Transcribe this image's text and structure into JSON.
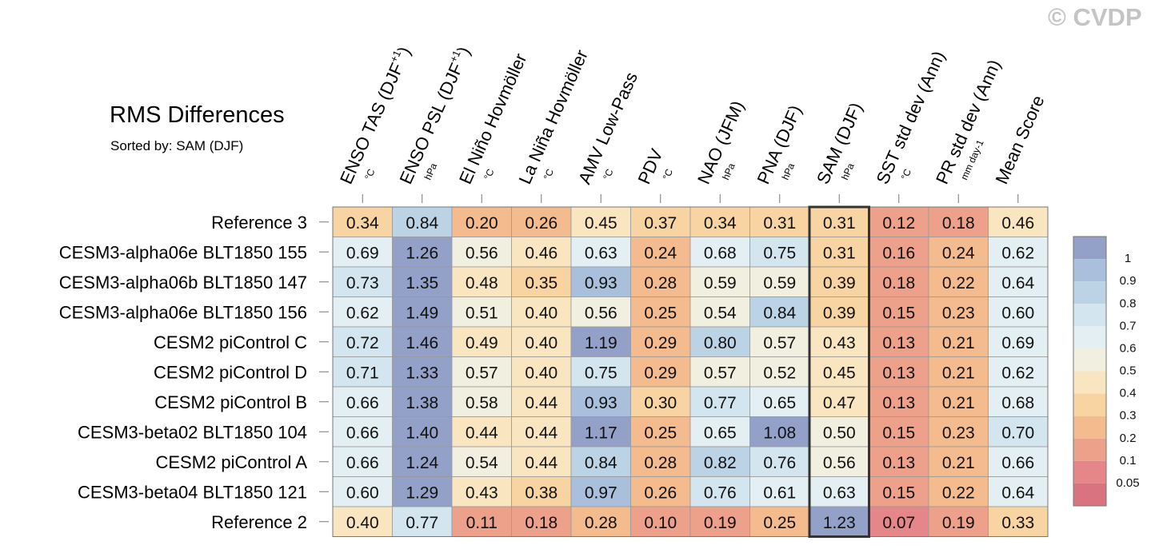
{
  "copyright": "© CVDP",
  "chart_data": {
    "type": "heatmap",
    "title": "RMS Differences",
    "subtitle": "Sorted by: SAM (DJF)",
    "highlight_column": "SAM (DJF)",
    "columns": [
      {
        "name": "ENSO TAS (DJF+1)",
        "base": "ENSO TAS (DJF",
        "sup": "+1",
        "close": ")",
        "unit": "°C"
      },
      {
        "name": "ENSO PSL (DJF+1)",
        "base": "ENSO PSL (DJF",
        "sup": "+1",
        "close": ")",
        "unit": "hPa"
      },
      {
        "name": "El Niño Hovmöller",
        "base": "El Niño Hovmöller",
        "sup": "",
        "close": "",
        "unit": "°C"
      },
      {
        "name": "La Niña Hovmöller",
        "base": "La Niña Hovmöller",
        "sup": "",
        "close": "",
        "unit": "°C"
      },
      {
        "name": "AMV Low-Pass",
        "base": "AMV Low-Pass",
        "sup": "",
        "close": "",
        "unit": "°C"
      },
      {
        "name": "PDV",
        "base": "PDV",
        "sup": "",
        "close": "",
        "unit": "°C"
      },
      {
        "name": "NAO (JFM)",
        "base": "NAO (JFM)",
        "sup": "",
        "close": "",
        "unit": "hPa"
      },
      {
        "name": "PNA (DJF)",
        "base": "PNA (DJF)",
        "sup": "",
        "close": "",
        "unit": "hPa"
      },
      {
        "name": "SAM (DJF)",
        "base": "SAM (DJF)",
        "sup": "",
        "close": "",
        "unit": "hPa"
      },
      {
        "name": "SST std dev (Ann)",
        "base": "SST std dev (Ann)",
        "sup": "",
        "close": "",
        "unit": "°C"
      },
      {
        "name": "PR std dev (Ann)",
        "base": "PR std dev (Ann)",
        "sup": "",
        "close": "",
        "unit": "mm day-1"
      },
      {
        "name": "Mean Score",
        "base": "Mean Score",
        "sup": "",
        "close": "",
        "unit": ""
      }
    ],
    "rows": [
      {
        "label": "Reference 3",
        "values": [
          "0.34",
          "0.84",
          "0.20",
          "0.26",
          "0.45",
          "0.37",
          "0.34",
          "0.31",
          "0.31",
          "0.12",
          "0.18",
          "0.46"
        ]
      },
      {
        "label": "CESM3-alpha06e BLT1850 155",
        "values": [
          "0.69",
          "1.26",
          "0.56",
          "0.46",
          "0.63",
          "0.24",
          "0.68",
          "0.75",
          "0.31",
          "0.16",
          "0.24",
          "0.62"
        ]
      },
      {
        "label": "CESM3-alpha06b BLT1850 147",
        "values": [
          "0.73",
          "1.35",
          "0.48",
          "0.35",
          "0.93",
          "0.28",
          "0.59",
          "0.59",
          "0.39",
          "0.18",
          "0.22",
          "0.64"
        ]
      },
      {
        "label": "CESM3-alpha06e BLT1850 156",
        "values": [
          "0.62",
          "1.49",
          "0.51",
          "0.40",
          "0.56",
          "0.25",
          "0.54",
          "0.84",
          "0.39",
          "0.15",
          "0.23",
          "0.60"
        ]
      },
      {
        "label": "CESM2 piControl C",
        "values": [
          "0.72",
          "1.46",
          "0.49",
          "0.40",
          "1.19",
          "0.29",
          "0.80",
          "0.57",
          "0.43",
          "0.13",
          "0.21",
          "0.69"
        ]
      },
      {
        "label": "CESM2 piControl D",
        "values": [
          "0.71",
          "1.33",
          "0.57",
          "0.40",
          "0.75",
          "0.29",
          "0.57",
          "0.52",
          "0.45",
          "0.13",
          "0.21",
          "0.62"
        ]
      },
      {
        "label": "CESM2 piControl B",
        "values": [
          "0.66",
          "1.38",
          "0.58",
          "0.44",
          "0.93",
          "0.30",
          "0.77",
          "0.65",
          "0.47",
          "0.13",
          "0.21",
          "0.68"
        ]
      },
      {
        "label": "CESM3-beta02 BLT1850 104",
        "values": [
          "0.66",
          "1.40",
          "0.44",
          "0.44",
          "1.17",
          "0.25",
          "0.65",
          "1.08",
          "0.50",
          "0.15",
          "0.23",
          "0.70"
        ]
      },
      {
        "label": "CESM2 piControl A",
        "values": [
          "0.66",
          "1.24",
          "0.54",
          "0.44",
          "0.84",
          "0.28",
          "0.82",
          "0.76",
          "0.56",
          "0.13",
          "0.21",
          "0.66"
        ]
      },
      {
        "label": "CESM3-beta04 BLT1850 121",
        "values": [
          "0.60",
          "1.29",
          "0.43",
          "0.38",
          "0.97",
          "0.26",
          "0.76",
          "0.61",
          "0.63",
          "0.15",
          "0.22",
          "0.64"
        ]
      },
      {
        "label": "Reference 2",
        "values": [
          "0.40",
          "0.77",
          "0.11",
          "0.18",
          "0.28",
          "0.10",
          "0.19",
          "0.25",
          "1.23",
          "0.07",
          "0.19",
          "0.33"
        ]
      }
    ],
    "colorbar": {
      "labels": [
        "1",
        "0.9",
        "0.8",
        "0.7",
        "0.6",
        "0.5",
        "0.4",
        "0.3",
        "0.2",
        "0.1",
        "0.05"
      ],
      "colors": [
        "#93a1c9",
        "#a9bfdb",
        "#bcd3e6",
        "#d3e5ef",
        "#e4eff3",
        "#f1efe0",
        "#f9e6c1",
        "#f8d4a2",
        "#f4bb8f",
        "#eda08a",
        "#e4868a",
        "#d8737f"
      ]
    }
  }
}
